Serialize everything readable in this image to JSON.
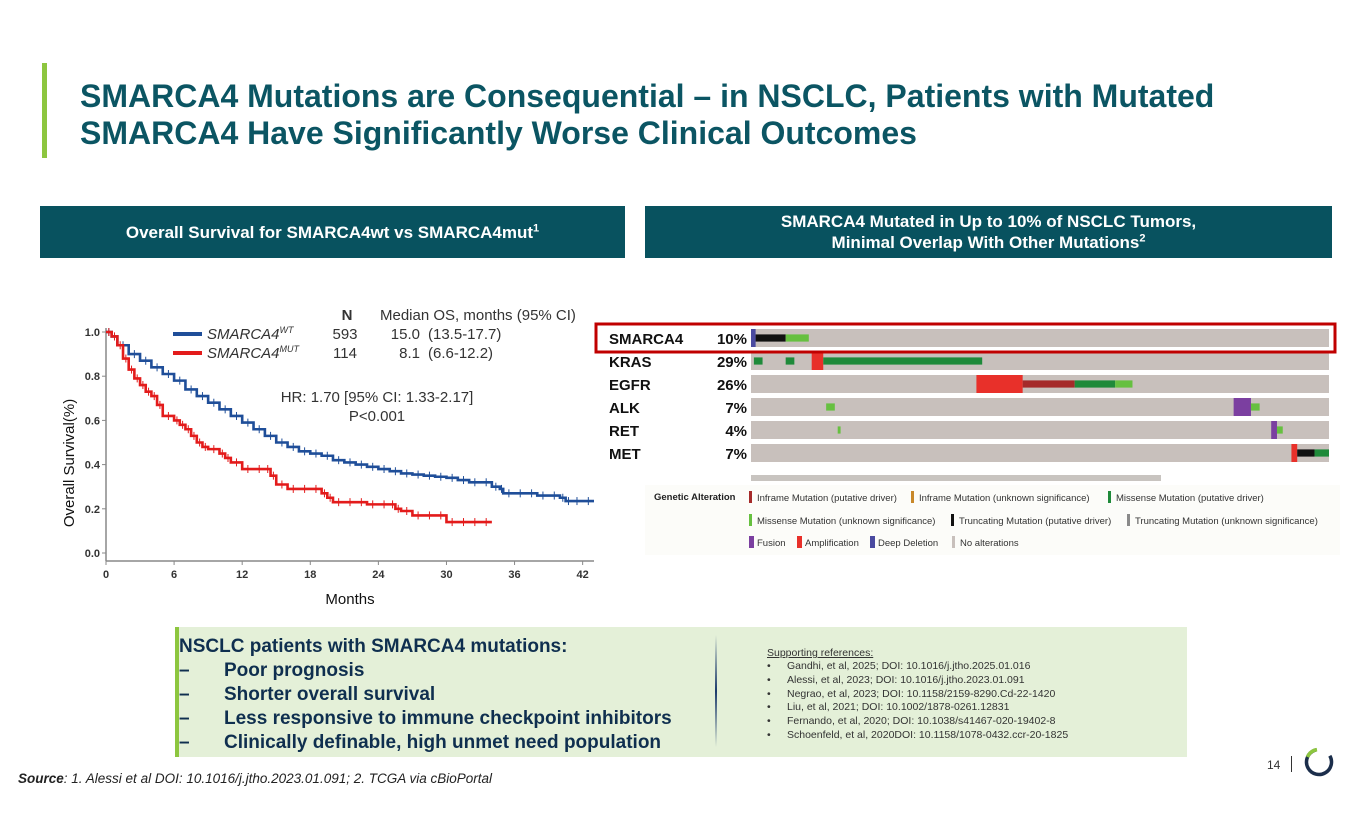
{
  "header": {
    "title_line1": "SMARCA4 Mutations are Consequential – in NSCLC, Patients with Mutated",
    "title_line2": "SMARCA4 Have Significantly Worse Clinical Outcomes"
  },
  "panels": {
    "left_header": "Overall Survival for SMARCA4wt vs SMARCA4mut",
    "left_header_sup": "1",
    "right_header_line1": "SMARCA4 Mutated in Up to 10% of NSCLC Tumors,",
    "right_header_line2": "Minimal Overlap With Other Mutations",
    "right_header_sup": "2"
  },
  "chart_data": [
    {
      "type": "line",
      "title": "Kaplan-Meier Overall Survival",
      "xlabel": "Months",
      "ylabel": "Overall Survival(%)",
      "xlim": [
        0,
        43
      ],
      "ylim": [
        0,
        1.0
      ],
      "xticks": [
        "0",
        "6",
        "12",
        "18",
        "24",
        "30",
        "36",
        "42"
      ],
      "yticks": [
        "0.0",
        "0.2",
        "0.4",
        "0.6",
        "0.8",
        "1.0"
      ],
      "legend_position": "top-right",
      "legend_header": {
        "n": "N",
        "median": "Median OS, months (95% CI)"
      },
      "series": [
        {
          "name": "SMARCA4",
          "sup": "WT",
          "color": "#1f4e99",
          "n": "593",
          "median": "15.0",
          "ci": "(13.5-17.7)",
          "x": [
            0,
            0.5,
            1,
            2,
            3,
            4,
            5,
            6,
            7,
            8,
            9,
            10,
            11,
            12,
            13,
            14,
            15,
            16,
            17,
            18,
            19,
            20,
            21,
            22,
            23,
            24,
            25,
            26,
            27,
            28,
            29,
            30,
            31,
            32,
            33,
            34,
            34.7,
            35,
            36,
            37,
            38,
            39,
            40,
            40.5,
            41,
            42,
            43
          ],
          "y": [
            1.0,
            0.98,
            0.94,
            0.9,
            0.87,
            0.84,
            0.81,
            0.78,
            0.74,
            0.71,
            0.68,
            0.65,
            0.62,
            0.59,
            0.56,
            0.53,
            0.5,
            0.48,
            0.46,
            0.45,
            0.44,
            0.42,
            0.41,
            0.4,
            0.39,
            0.38,
            0.37,
            0.36,
            0.355,
            0.35,
            0.345,
            0.34,
            0.33,
            0.32,
            0.32,
            0.3,
            0.29,
            0.27,
            0.27,
            0.27,
            0.26,
            0.26,
            0.25,
            0.235,
            0.235,
            0.235,
            0.235
          ]
        },
        {
          "name": "SMARCA4",
          "sup": "MUT",
          "color": "#e31b1b",
          "n": "114",
          "median": "8.1",
          "ci": "(6.6-12.2)",
          "x": [
            0,
            0.5,
            1,
            1.5,
            2,
            2.5,
            3,
            3.5,
            4,
            4.5,
            5,
            6,
            6.5,
            7,
            7.5,
            8,
            8.5,
            9,
            10,
            10.5,
            11,
            12,
            13,
            14,
            14.5,
            15,
            16,
            17,
            18,
            19,
            19.5,
            20,
            21,
            22,
            23,
            24,
            25,
            25.5,
            26,
            27,
            28,
            29,
            30,
            31,
            32,
            33,
            34
          ],
          "y": [
            1.0,
            0.98,
            0.94,
            0.88,
            0.83,
            0.79,
            0.76,
            0.73,
            0.71,
            0.67,
            0.62,
            0.6,
            0.58,
            0.56,
            0.53,
            0.5,
            0.48,
            0.47,
            0.45,
            0.43,
            0.41,
            0.38,
            0.38,
            0.38,
            0.35,
            0.31,
            0.29,
            0.29,
            0.29,
            0.27,
            0.25,
            0.23,
            0.23,
            0.23,
            0.22,
            0.22,
            0.22,
            0.2,
            0.19,
            0.17,
            0.17,
            0.17,
            0.14,
            0.14,
            0.14,
            0.14,
            0.14
          ]
        }
      ],
      "annotations": [
        "HR: 1.70 [95% CI: 1.33-2.17]",
        "P<0.001"
      ]
    },
    {
      "type": "table",
      "title": "OncoPrint (TCGA via cBioPortal)",
      "genes": [
        {
          "gene": "SMARCA4",
          "pct": "10%"
        },
        {
          "gene": "KRAS",
          "pct": "29%"
        },
        {
          "gene": "EGFR",
          "pct": "26%"
        },
        {
          "gene": "ALK",
          "pct": "7%"
        },
        {
          "gene": "RET",
          "pct": "4%"
        },
        {
          "gene": "MET",
          "pct": "7%"
        }
      ],
      "highlighted_gene": "SMARCA4",
      "alteration_segments_fraction_of_samples": {
        "SMARCA4": [
          {
            "type": "deep_deletion",
            "start": 0.0,
            "end": 0.008
          },
          {
            "type": "truncating_driver",
            "start": 0.008,
            "end": 0.06
          },
          {
            "type": "missense_unknown",
            "start": 0.06,
            "end": 0.1
          }
        ],
        "KRAS": [
          {
            "type": "missense_driver",
            "start": 0.005,
            "end": 0.02
          },
          {
            "type": "missense_driver",
            "start": 0.06,
            "end": 0.075
          },
          {
            "type": "amplification",
            "start": 0.105,
            "end": 0.125
          },
          {
            "type": "missense_driver",
            "start": 0.125,
            "end": 0.4
          }
        ],
        "EGFR": [
          {
            "type": "amplification",
            "start": 0.39,
            "end": 0.47
          },
          {
            "type": "inframe_driver",
            "start": 0.47,
            "end": 0.56
          },
          {
            "type": "missense_driver",
            "start": 0.56,
            "end": 0.63
          },
          {
            "type": "missense_unknown",
            "start": 0.63,
            "end": 0.66
          }
        ],
        "ALK": [
          {
            "type": "missense_unknown",
            "start": 0.13,
            "end": 0.145
          },
          {
            "type": "fusion",
            "start": 0.835,
            "end": 0.865
          },
          {
            "type": "missense_unknown",
            "start": 0.865,
            "end": 0.88
          }
        ],
        "RET": [
          {
            "type": "missense_unknown",
            "start": 0.15,
            "end": 0.155
          },
          {
            "type": "fusion",
            "start": 0.9,
            "end": 0.91
          },
          {
            "type": "missense_unknown",
            "start": 0.91,
            "end": 0.92
          }
        ],
        "MET": [
          {
            "type": "amplification",
            "start": 0.935,
            "end": 0.945
          },
          {
            "type": "truncating_driver",
            "start": 0.945,
            "end": 0.975
          },
          {
            "type": "missense_driver",
            "start": 0.975,
            "end": 1.0
          }
        ]
      },
      "legend_title": "Genetic Alteration",
      "legend": [
        {
          "label": "Inframe Mutation (putative driver)",
          "color": "#a52a2a"
        },
        {
          "label": "Inframe Mutation (unknown significance)",
          "color": "#c8882a"
        },
        {
          "label": "Missense Mutation (putative driver)",
          "color": "#1f8a3a"
        },
        {
          "label": "Missense Mutation (unknown significance)",
          "color": "#66c040"
        },
        {
          "label": "Truncating Mutation (putative driver)",
          "color": "#111111"
        },
        {
          "label": "Truncating Mutation (unknown significance)",
          "color": "#8a8a8a"
        },
        {
          "label": "Fusion",
          "color": "#7b3fa0"
        },
        {
          "label": "Amplification",
          "color": "#e8302a"
        },
        {
          "label": "Deep Deletion",
          "color": "#4a4aa0"
        },
        {
          "label": "No alterations",
          "color": "#c8c0bc"
        }
      ]
    }
  ],
  "summary": {
    "heading": "NSCLC patients with SMARCA4 mutations:",
    "dash": "–",
    "items": [
      "Poor prognosis",
      "Shorter overall survival",
      "Less responsive to immune checkpoint inhibitors",
      "Clinically definable, high unmet need population"
    ]
  },
  "references": {
    "heading": "Supporting references:",
    "bullet": "•",
    "items": [
      "Gandhi, et al, 2025; DOI: 10.1016/j.jtho.2025.01.016",
      "Alessi, et al, 2023; DOI: 10.1016/j.jtho.2023.01.091",
      "Negrao, et al, 2023; DOI: 10.1158/2159-8290.Cd-22-1420",
      "Liu, et al, 2021; DOI: 10.1002/1878-0261.12831",
      "Fernando, et al, 2020; DOI: 10.1038/s41467-020-19402-8",
      "Schoenfeld, et al, 2020DOI: 10.1158/1078-0432.ccr-20-1825"
    ]
  },
  "footer": {
    "source_label": "Source",
    "source_text": ": 1. Alessi et al DOI: 10.1016/j.jtho.2023.01.091; 2. TCGA via cBioPortal",
    "page_number": "14",
    "logo_icon": "circular-progress-logo-icon"
  }
}
